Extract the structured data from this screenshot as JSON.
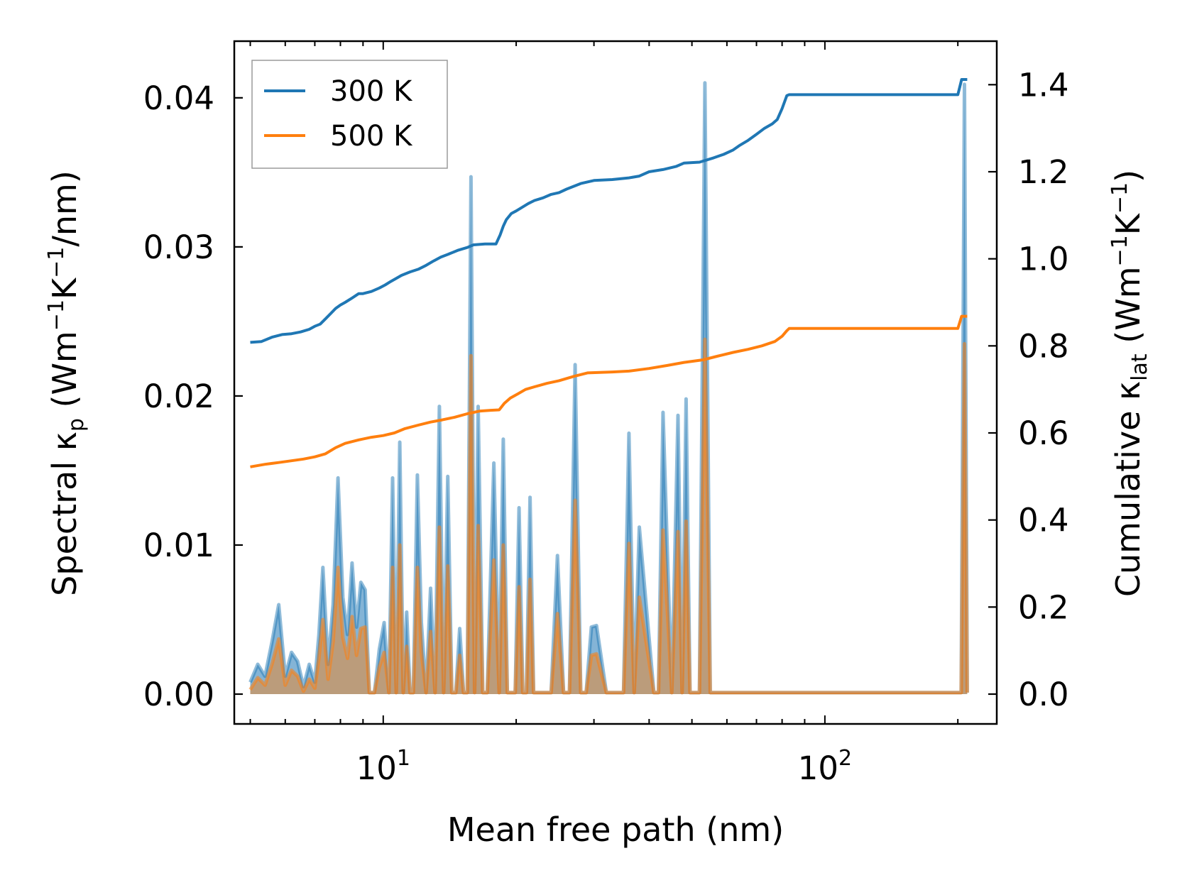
{
  "chart_data": {
    "type": "line",
    "xscale": "log",
    "xlabel": "Mean free path (nm)",
    "ylabel_left": {
      "base": "Spectral κ",
      "sub": "p",
      "units_pre": " (Wm",
      "sup1": "−1",
      "mid": "K",
      "sup2": "−1",
      "post": "/nm)"
    },
    "ylabel_right": {
      "base": "Cumulative κ",
      "sub": "lat",
      "units_pre": " (Wm",
      "sup1": "−1",
      "mid": "K",
      "sup2": "−1",
      "post": ")"
    },
    "xlim": [
      4.6,
      245
    ],
    "ylim_left": [
      -0.002,
      0.0438
    ],
    "ylim_right": [
      -0.0685,
      1.5
    ],
    "x_ticks": [
      {
        "value": 10,
        "base": "10",
        "exp": "1"
      },
      {
        "value": 100,
        "base": "10",
        "exp": "2"
      }
    ],
    "y_ticks_left": [
      {
        "value": 0.0,
        "label": "0.00"
      },
      {
        "value": 0.01,
        "label": "0.01"
      },
      {
        "value": 0.02,
        "label": "0.02"
      },
      {
        "value": 0.03,
        "label": "0.03"
      },
      {
        "value": 0.04,
        "label": "0.04"
      }
    ],
    "y_ticks_right": [
      {
        "value": 0.0,
        "label": "0.0"
      },
      {
        "value": 0.2,
        "label": "0.2"
      },
      {
        "value": 0.4,
        "label": "0.4"
      },
      {
        "value": 0.6,
        "label": "0.6"
      },
      {
        "value": 0.8,
        "label": "0.8"
      },
      {
        "value": 1.0,
        "label": "1.0"
      },
      {
        "value": 1.2,
        "label": "1.2"
      },
      {
        "value": 1.4,
        "label": "1.4"
      }
    ],
    "legend": {
      "location": "top-left",
      "entries": [
        {
          "label": "300 K",
          "color": "#1f77b4"
        },
        {
          "label": "500 K",
          "color": "#ff7f0e"
        }
      ]
    },
    "spectral_x": [
      5.0,
      5.2,
      5.4,
      5.6,
      5.8,
      6.0,
      6.2,
      6.4,
      6.6,
      6.8,
      7.0,
      7.15,
      7.3,
      7.5,
      7.7,
      7.9,
      8.1,
      8.3,
      8.5,
      8.7,
      8.9,
      9.1,
      9.3,
      9.55,
      9.8,
      10.05,
      10.3,
      10.5,
      10.7,
      10.9,
      11.1,
      11.3,
      11.5,
      11.7,
      11.95,
      12.2,
      12.5,
      12.8,
      13.1,
      13.4,
      13.7,
      14.0,
      14.3,
      14.6,
      14.9,
      15.2,
      15.5,
      15.8,
      16.1,
      16.4,
      16.8,
      17.2,
      17.8,
      18.3,
      18.7,
      19.1,
      19.5,
      19.9,
      20.3,
      20.7,
      21.1,
      21.5,
      21.9,
      22.3,
      22.7,
      23.1,
      24.0,
      24.8,
      25.6,
      26.4,
      27.2,
      28.0,
      28.8,
      29.6,
      30.4,
      32.0,
      35.0,
      36.0,
      37.0,
      38.0,
      41.0,
      42.0,
      43.0,
      45.0,
      46.5,
      47.5,
      48.5,
      49.5,
      52.0,
      53.5,
      55.0,
      56.5,
      58.0,
      59.5,
      61.0,
      63.5,
      65.0,
      66.5,
      68.0,
      69.5,
      71.0,
      72.5,
      74.0,
      75.5,
      77.0,
      78.5,
      80.0,
      81.0,
      82.5,
      84.5,
      200.0,
      203.5,
      207.0,
      210.0
    ],
    "series": [
      {
        "name": "300 K",
        "color": "#1f77b4",
        "spectral": [
          0.0008,
          0.002,
          0.0012,
          0.0035,
          0.006,
          0.0012,
          0.0028,
          0.0022,
          0.0005,
          0.002,
          0.0008,
          0.004,
          0.0085,
          0.002,
          0.006,
          0.0145,
          0.0065,
          0.004,
          0.0088,
          0.0045,
          0.0075,
          0.007,
          0.0001,
          0.0001,
          0.003,
          0.0048,
          0.0001,
          0.0145,
          0.0001,
          0.0169,
          0.0001,
          0.0055,
          0.0001,
          0.0001,
          0.0147,
          0.0048,
          0.0001,
          0.0071,
          0.0001,
          0.0193,
          0.0001,
          0.0146,
          0.0001,
          0.0001,
          0.0044,
          0.0001,
          0.0001,
          0.0347,
          0.0001,
          0.0193,
          0.0001,
          0.0001,
          0.0155,
          0.0001,
          0.0171,
          0.0001,
          0.0001,
          0.0001,
          0.0125,
          0.0001,
          0.0001,
          0.0132,
          0.0001,
          0.0001,
          0.0001,
          0.0001,
          0.0001,
          0.0093,
          0.0001,
          0.0001,
          0.0221,
          0.0001,
          0.0001,
          0.0045,
          0.0046,
          0.0001,
          0.0001,
          0.0175,
          0.0001,
          0.0112,
          0.0001,
          0.0001,
          0.0189,
          0.0001,
          0.0187,
          0.0001,
          0.0198,
          0.0001,
          0.0001,
          0.041,
          0.0001,
          0.0001,
          0.0001,
          0.0001,
          0.0001,
          0.0001,
          0.0001,
          0.0001,
          0.0001,
          0.0001,
          0.0001,
          0.0001,
          0.0001,
          0.0001,
          0.0001,
          0.0001,
          0.0001,
          0.0001,
          0.0001,
          0.0001,
          0.0001,
          0.0001,
          0.0409,
          0.0001
        ],
        "cumulative_x": [
          5.0,
          5.3,
          5.6,
          5.9,
          6.2,
          6.5,
          6.8,
          7.0,
          7.2,
          7.4,
          7.6,
          7.8,
          8.0,
          8.2,
          8.5,
          8.8,
          9.0,
          9.4,
          9.8,
          10.1,
          10.4,
          10.7,
          11.0,
          11.5,
          12.0,
          12.5,
          13.0,
          13.5,
          14.0,
          14.8,
          15.5,
          16.0,
          17.0,
          18.0,
          18.4,
          18.7,
          19.0,
          19.5,
          20.0,
          20.6,
          21.3,
          22.0,
          23.0,
          24.0,
          25.0,
          26.0,
          28.0,
          30.0,
          33.0,
          36.0,
          38.0,
          40.0,
          43.0,
          46.0,
          48.0,
          52.0,
          56.0,
          59.0,
          62.0,
          64.0,
          67.0,
          70.0,
          73.0,
          76.0,
          78.0,
          80.0,
          82.0,
          83.0,
          200.0,
          204.0,
          210.0
        ],
        "cumulative": [
          0.808,
          0.81,
          0.82,
          0.826,
          0.828,
          0.832,
          0.838,
          0.845,
          0.85,
          0.862,
          0.874,
          0.886,
          0.894,
          0.9,
          0.91,
          0.92,
          0.92,
          0.925,
          0.933,
          0.94,
          0.948,
          0.955,
          0.962,
          0.97,
          0.976,
          0.985,
          0.995,
          1.004,
          1.01,
          1.02,
          1.026,
          1.032,
          1.034,
          1.034,
          1.055,
          1.075,
          1.09,
          1.104,
          1.11,
          1.118,
          1.127,
          1.134,
          1.14,
          1.148,
          1.152,
          1.16,
          1.173,
          1.18,
          1.182,
          1.186,
          1.19,
          1.2,
          1.205,
          1.212,
          1.22,
          1.222,
          1.232,
          1.24,
          1.25,
          1.26,
          1.272,
          1.286,
          1.3,
          1.31,
          1.32,
          1.345,
          1.375,
          1.377,
          1.377,
          1.412,
          1.412
        ]
      },
      {
        "name": "500 K",
        "color": "#ff7f0e",
        "spectral": [
          0.0003,
          0.0011,
          0.0006,
          0.002,
          0.0037,
          0.0006,
          0.0016,
          0.0012,
          0.0002,
          0.001,
          0.0004,
          0.0024,
          0.005,
          0.001,
          0.0035,
          0.0085,
          0.0038,
          0.0024,
          0.0052,
          0.0026,
          0.0044,
          0.0045,
          0.0001,
          0.0001,
          0.0018,
          0.0028,
          0.0001,
          0.0085,
          0.0001,
          0.01,
          0.0001,
          0.0032,
          0.0001,
          0.0001,
          0.0085,
          0.0028,
          0.0001,
          0.0042,
          0.0001,
          0.0112,
          0.0001,
          0.0086,
          0.0001,
          0.0001,
          0.0026,
          0.0001,
          0.0001,
          0.0227,
          0.0001,
          0.0113,
          0.0001,
          0.0001,
          0.009,
          0.0001,
          0.01,
          0.0001,
          0.0001,
          0.0001,
          0.0072,
          0.0001,
          0.0001,
          0.0077,
          0.0001,
          0.0001,
          0.0001,
          0.0001,
          0.0001,
          0.0054,
          0.0001,
          0.0001,
          0.013,
          0.0001,
          0.0001,
          0.0026,
          0.0027,
          0.0001,
          0.0001,
          0.0101,
          0.0001,
          0.0065,
          0.0001,
          0.0001,
          0.011,
          0.0001,
          0.0109,
          0.0001,
          0.0116,
          0.0001,
          0.0001,
          0.0238,
          0.0001,
          0.0001,
          0.0001,
          0.0001,
          0.0001,
          0.0001,
          0.0001,
          0.0001,
          0.0001,
          0.0001,
          0.0001,
          0.0001,
          0.0001,
          0.0001,
          0.0001,
          0.0001,
          0.0001,
          0.0001,
          0.0001,
          0.0001,
          0.0001,
          0.0001,
          0.0235,
          0.0001
        ],
        "cumulative_x": [
          5.0,
          5.4,
          5.8,
          6.2,
          6.6,
          7.0,
          7.4,
          7.8,
          8.2,
          8.8,
          9.4,
          10.0,
          10.6,
          11.2,
          12.0,
          12.8,
          13.6,
          14.5,
          15.5,
          16.5,
          17.5,
          18.3,
          18.8,
          19.4,
          20.2,
          21.0,
          22.0,
          23.5,
          25.0,
          27.0,
          29.0,
          33.0,
          36.0,
          40.0,
          44.0,
          48.0,
          53.0,
          57.0,
          62.0,
          67.0,
          72.0,
          77.0,
          80.0,
          82.0,
          83.0,
          200.0,
          204.0,
          210.0
        ],
        "cumulative": [
          0.522,
          0.528,
          0.532,
          0.536,
          0.54,
          0.545,
          0.552,
          0.566,
          0.576,
          0.584,
          0.59,
          0.594,
          0.6,
          0.61,
          0.618,
          0.625,
          0.63,
          0.636,
          0.644,
          0.65,
          0.652,
          0.653,
          0.668,
          0.68,
          0.69,
          0.7,
          0.706,
          0.714,
          0.72,
          0.73,
          0.738,
          0.74,
          0.742,
          0.748,
          0.755,
          0.762,
          0.768,
          0.776,
          0.785,
          0.792,
          0.8,
          0.81,
          0.822,
          0.835,
          0.84,
          0.84,
          0.868,
          0.868
        ]
      }
    ]
  }
}
